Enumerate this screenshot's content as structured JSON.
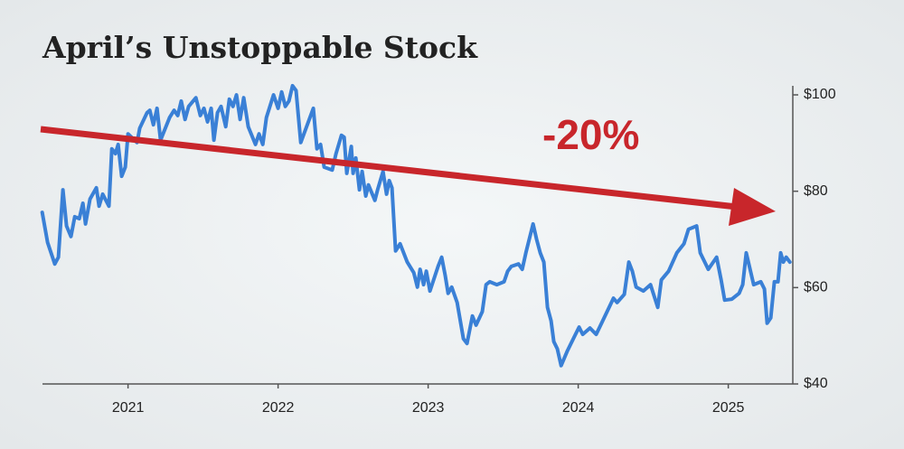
{
  "chart_data": {
    "type": "line",
    "title": "April’s Unstoppable Stock",
    "annotation": "-20%",
    "color": "#3a80d6",
    "xlim": [
      2020.43,
      2025.43
    ],
    "xticks": [
      2021,
      2022,
      2023,
      2024,
      2025
    ],
    "ylim": [
      40,
      100
    ],
    "yticks": [
      {
        "value": 100,
        "label": "$100"
      },
      {
        "value": 80,
        "label": "$80"
      },
      {
        "value": 60,
        "label": "$60"
      },
      {
        "value": 40,
        "label": "$40"
      }
    ],
    "x": [
      2020.428,
      2020.464,
      2020.512,
      2020.536,
      2020.566,
      2020.59,
      2020.62,
      2020.645,
      2020.675,
      2020.699,
      2020.717,
      2020.747,
      2020.789,
      2020.807,
      2020.831,
      2020.873,
      2020.892,
      2020.916,
      2020.934,
      2020.958,
      2020.982,
      2021.0,
      2021.06,
      2021.078,
      2021.127,
      2021.145,
      2021.169,
      2021.193,
      2021.217,
      2021.277,
      2021.307,
      2021.331,
      2021.355,
      2021.38,
      2021.404,
      2021.452,
      2021.482,
      2021.506,
      2021.53,
      2021.554,
      2021.572,
      2021.596,
      2021.62,
      2021.651,
      2021.675,
      2021.699,
      2021.723,
      2021.747,
      2021.771,
      2021.801,
      2021.849,
      2021.873,
      2021.898,
      2021.922,
      2021.97,
      2022.0,
      2022.024,
      2022.048,
      2022.072,
      2022.096,
      2022.12,
      2022.151,
      2022.235,
      2022.259,
      2022.283,
      2022.307,
      2022.361,
      2022.386,
      2022.422,
      2022.44,
      2022.458,
      2022.488,
      2022.5,
      2022.518,
      2022.542,
      2022.56,
      2022.584,
      2022.602,
      2022.645,
      2022.663,
      2022.699,
      2022.723,
      2022.741,
      2022.759,
      2022.783,
      2022.813,
      2022.861,
      2022.904,
      2022.928,
      2022.946,
      2022.97,
      2022.988,
      2023.012,
      2023.066,
      2023.09,
      2023.114,
      2023.133,
      2023.157,
      2023.193,
      2023.235,
      2023.259,
      2023.295,
      2023.319,
      2023.361,
      2023.386,
      2023.41,
      2023.458,
      2023.506,
      2023.53,
      2023.554,
      2023.602,
      2023.627,
      2023.651,
      2023.699,
      2023.723,
      2023.747,
      2023.771,
      2023.795,
      2023.819,
      2023.837,
      2023.861,
      2023.886,
      2023.928,
      2023.982,
      2024.006,
      2024.03,
      2024.078,
      2024.12,
      2024.163,
      2024.235,
      2024.259,
      2024.307,
      2024.337,
      2024.361,
      2024.386,
      2024.434,
      2024.482,
      2024.53,
      2024.554,
      2024.602,
      2024.657,
      2024.705,
      2024.735,
      2024.789,
      2024.813,
      2024.867,
      2024.922,
      2024.952,
      2024.976,
      2025.024,
      2025.072,
      2025.096,
      2025.12,
      2025.169,
      2025.217,
      2025.241,
      2025.259,
      2025.283,
      2025.307,
      2025.331,
      2025.349,
      2025.367,
      2025.386,
      2025.41
    ],
    "values": [
      75.6,
      69.4,
      64.9,
      66.3,
      80.3,
      72.8,
      70.6,
      74.7,
      74.3,
      77.5,
      73.2,
      78.4,
      80.7,
      76.9,
      79.4,
      76.9,
      88.8,
      87.8,
      89.7,
      83.1,
      85.0,
      91.9,
      90.1,
      93.1,
      96.3,
      96.8,
      93.8,
      97.2,
      90.6,
      95.3,
      96.8,
      95.7,
      98.7,
      94.9,
      97.6,
      99.4,
      95.7,
      97.2,
      94.4,
      97.2,
      90.6,
      96.3,
      97.6,
      93.4,
      99.1,
      97.6,
      100.0,
      94.9,
      99.4,
      93.4,
      89.7,
      91.9,
      89.7,
      95.3,
      100.0,
      97.2,
      100.6,
      97.6,
      98.7,
      101.9,
      100.9,
      90.1,
      97.2,
      88.8,
      89.7,
      85.0,
      84.4,
      87.8,
      91.6,
      91.2,
      83.7,
      89.3,
      83.7,
      86.9,
      80.3,
      84.1,
      79.0,
      81.3,
      78.1,
      80.3,
      84.1,
      79.4,
      82.2,
      80.7,
      67.6,
      69.1,
      65.3,
      63.1,
      60.1,
      63.8,
      60.6,
      63.4,
      59.3,
      64.4,
      66.3,
      62.5,
      58.8,
      60.1,
      56.9,
      49.4,
      48.4,
      54.1,
      52.2,
      55.0,
      60.6,
      61.2,
      60.6,
      61.2,
      63.4,
      64.4,
      64.9,
      63.8,
      67.2,
      73.2,
      70.0,
      67.2,
      65.3,
      55.9,
      53.1,
      48.8,
      47.3,
      43.8,
      46.9,
      50.3,
      51.8,
      50.3,
      51.6,
      50.3,
      53.1,
      57.8,
      56.9,
      58.6,
      65.3,
      63.4,
      60.1,
      59.3,
      60.6,
      55.9,
      61.6,
      63.4,
      67.2,
      69.1,
      72.1,
      72.8,
      67.2,
      63.8,
      66.3,
      61.6,
      57.4,
      57.6,
      58.8,
      60.6,
      67.2,
      60.6,
      61.2,
      59.7,
      52.6,
      53.7,
      61.2,
      61.2,
      67.2,
      65.3,
      66.3,
      65.3
    ]
  }
}
